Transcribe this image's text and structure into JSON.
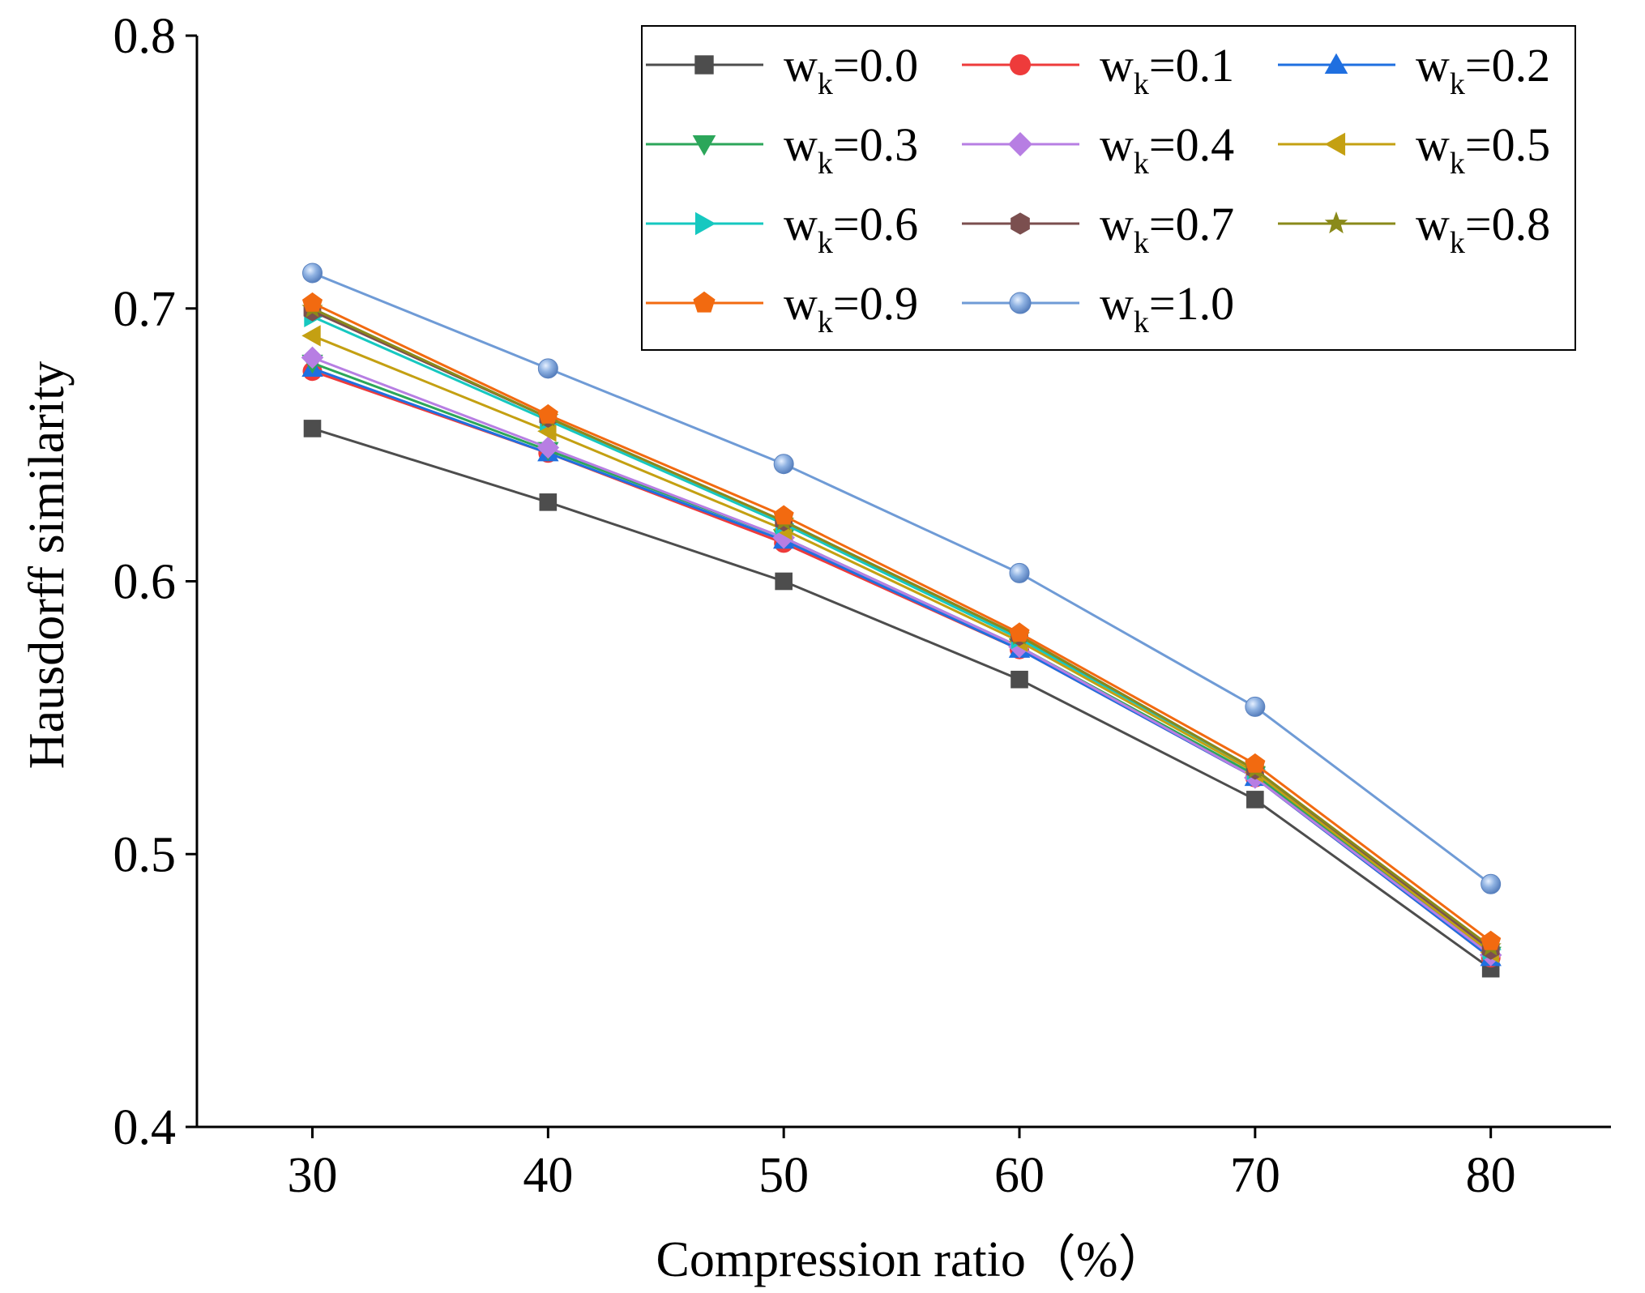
{
  "chart_data": {
    "type": "line",
    "xlabel": "Compression ratio（%）",
    "ylabel": "Hausdorff similarity",
    "x": [
      30,
      40,
      50,
      60,
      70,
      80
    ],
    "x_ticks": [
      "30",
      "40",
      "50",
      "60",
      "70",
      "80"
    ],
    "xlim": [
      25.1,
      85.1
    ],
    "y_ticks": [
      "0.4",
      "0.5",
      "0.6",
      "0.7",
      "0.8"
    ],
    "ylim": [
      0.4,
      0.8
    ],
    "grid": false,
    "legend_position": "top-right",
    "series": [
      {
        "name": "w_k=0.0",
        "label_main": "w",
        "label_sub": "k",
        "label_value": "=0.0",
        "color": "#4d4d4d",
        "marker": "square",
        "values": [
          0.656,
          0.629,
          0.6,
          0.564,
          0.52,
          0.458
        ]
      },
      {
        "name": "w_k=0.1",
        "label_main": "w",
        "label_sub": "k",
        "label_value": "=0.1",
        "color": "#ee3b3b",
        "marker": "circle",
        "values": [
          0.677,
          0.647,
          0.614,
          0.575,
          0.528,
          0.462
        ]
      },
      {
        "name": "w_k=0.2",
        "label_main": "w",
        "label_sub": "k",
        "label_value": "=0.2",
        "color": "#1f6fe0",
        "marker": "triangle-up",
        "values": [
          0.678,
          0.647,
          0.615,
          0.575,
          0.528,
          0.462
        ]
      },
      {
        "name": "w_k=0.3",
        "label_main": "w",
        "label_sub": "k",
        "label_value": "=0.3",
        "color": "#2ca65a",
        "marker": "triangle-down",
        "values": [
          0.68,
          0.648,
          0.616,
          0.576,
          0.529,
          0.463
        ]
      },
      {
        "name": "w_k=0.4",
        "label_main": "w",
        "label_sub": "k",
        "label_value": "=0.4",
        "color": "#b77ee3",
        "marker": "diamond",
        "values": [
          0.682,
          0.649,
          0.616,
          0.576,
          0.528,
          0.463
        ]
      },
      {
        "name": "w_k=0.5",
        "label_main": "w",
        "label_sub": "k",
        "label_value": "=0.5",
        "color": "#c4a012",
        "marker": "triangle-left",
        "values": [
          0.69,
          0.655,
          0.619,
          0.578,
          0.53,
          0.464
        ]
      },
      {
        "name": "w_k=0.6",
        "label_main": "w",
        "label_sub": "k",
        "label_value": "=0.6",
        "color": "#16c8c0",
        "marker": "triangle-right",
        "values": [
          0.697,
          0.659,
          0.621,
          0.579,
          0.531,
          0.465
        ]
      },
      {
        "name": "w_k=0.7",
        "label_main": "w",
        "label_sub": "k",
        "label_value": "=0.7",
        "color": "#7b4f4f",
        "marker": "hexagon",
        "values": [
          0.699,
          0.66,
          0.622,
          0.58,
          0.531,
          0.465
        ]
      },
      {
        "name": "w_k=0.8",
        "label_main": "w",
        "label_sub": "k",
        "label_value": "=0.8",
        "color": "#8a8a1a",
        "marker": "star",
        "values": [
          0.7,
          0.66,
          0.622,
          0.58,
          0.531,
          0.466
        ]
      },
      {
        "name": "w_k=0.9",
        "label_main": "w",
        "label_sub": "k",
        "label_value": "=0.9",
        "color": "#f26a10",
        "marker": "pentagon",
        "values": [
          0.702,
          0.661,
          0.624,
          0.581,
          0.533,
          0.468
        ]
      },
      {
        "name": "w_k=1.0",
        "label_main": "w",
        "label_sub": "k",
        "label_value": "=1.0",
        "color": "#6f9bd6",
        "marker": "sphere",
        "values": [
          0.713,
          0.678,
          0.643,
          0.603,
          0.554,
          0.489
        ]
      }
    ]
  }
}
